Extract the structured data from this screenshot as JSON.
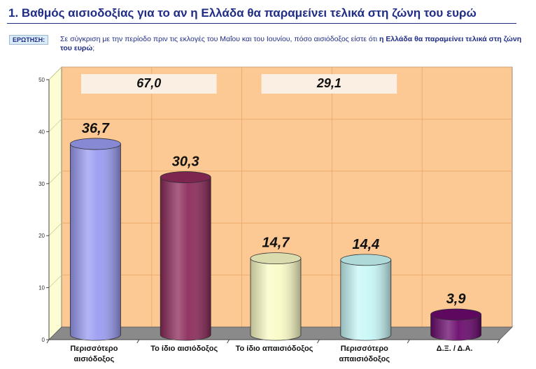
{
  "title": "1.   Βαθμός αισιοδοξίας για το αν η Ελλάδα θα παραμείνει τελικά στη ζώνη του ευρώ",
  "question": {
    "badge": "ΕΡΩΤΗΣΗ:",
    "text_plain": "Σε σύγκριση με την περίοδο πριν τις εκλογές του Μαΐου και του Ιουνίου, πόσο αισιόδοξος είστε ότι ",
    "text_bold": "η Ελλάδα θα παραμείνει τελικά στη ζώνη του ευρώ",
    "text_end": ";"
  },
  "colors": {
    "plot_bg": "#fcc994",
    "wall": "#fdfdd3",
    "floor": "#8a8a8a",
    "box_fill": "#fbeee2"
  },
  "chart_data": {
    "type": "bar",
    "title": "",
    "xlabel": "",
    "ylabel": "",
    "ylim": [
      0,
      50
    ],
    "yticks": [
      0,
      10,
      20,
      30,
      40,
      50
    ],
    "grid": true,
    "categories": [
      [
        "Περισσότερο",
        "αισιόδοξος"
      ],
      [
        "Το ίδιο αισιόδοξος"
      ],
      [
        "Το ίδιο απαισιόδοξος"
      ],
      [
        "Περισσότερο",
        "απαισιόδοξος"
      ],
      [
        "Δ.Ξ. / Δ.Α."
      ]
    ],
    "values": [
      36.7,
      30.3,
      14.7,
      14.4,
      3.9
    ],
    "value_labels": [
      "36,7",
      "30,3",
      "14,7",
      "14,4",
      "3,9"
    ],
    "bar_colors": [
      "#9a9cf2",
      "#8c2b5a",
      "#fafbc6",
      "#c8f7f7",
      "#6b0a6e"
    ],
    "totals": [
      {
        "label": "67,0",
        "from": 0,
        "to": 1
      },
      {
        "label": "29,1",
        "from": 2,
        "to": 3
      }
    ]
  }
}
